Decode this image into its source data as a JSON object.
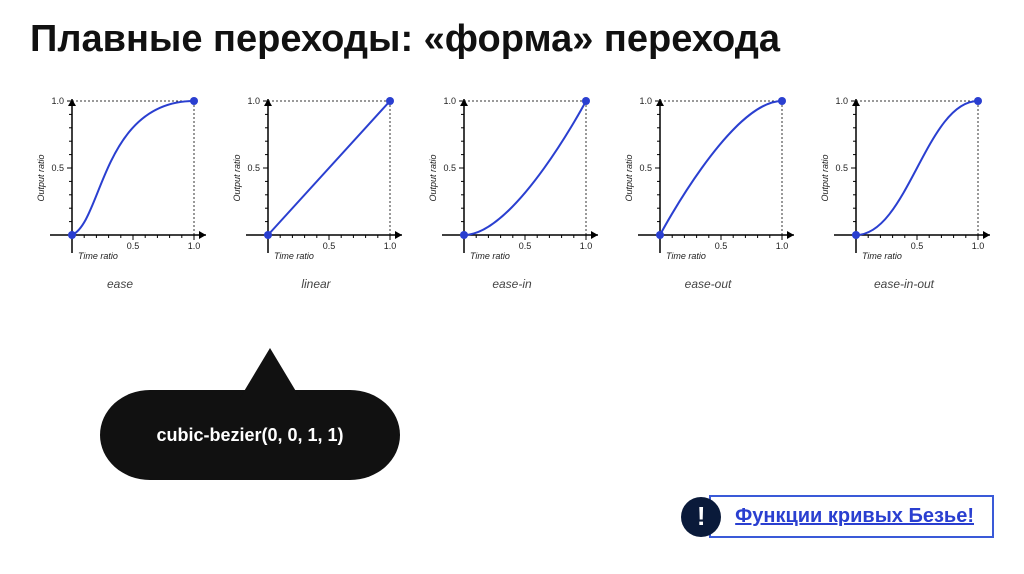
{
  "title": "Плавные переходы: «форма» перехода",
  "axis": {
    "xlabel": "Time ratio",
    "ylabel": "Output ratio",
    "xticks": [
      0.5,
      1.0
    ],
    "yticks": [
      0.5,
      1.0
    ],
    "xlim": [
      -0.25,
      1.25
    ],
    "ylim": [
      -0.25,
      1.25
    ],
    "axis_color": "#000000",
    "tick_fontsize": 9,
    "label_fontsize": 9,
    "label_font_style": "italic"
  },
  "curve_style": {
    "stroke": "#2a3fd0",
    "stroke_width": 2,
    "endpoint_fill": "#2a3fd0",
    "endpoint_radius": 4,
    "guide_stroke": "#333333",
    "guide_dash": "2,2",
    "background": "#ffffff"
  },
  "charts": [
    {
      "label": "ease",
      "bezier": [
        0.25,
        0.1,
        0.25,
        1.0
      ]
    },
    {
      "label": "linear",
      "bezier": [
        0.0,
        0.0,
        1.0,
        1.0
      ]
    },
    {
      "label": "ease-in",
      "bezier": [
        0.42,
        0.0,
        1.0,
        1.0
      ]
    },
    {
      "label": "ease-out",
      "bezier": [
        0.0,
        0.0,
        0.58,
        1.0
      ]
    },
    {
      "label": "ease-in-out",
      "bezier": [
        0.42,
        0.0,
        0.58,
        1.0
      ]
    }
  ],
  "bubble_text": "cubic-bezier(0, 0, 1, 1)",
  "bubble_points_to_chart_index": 1,
  "callout": {
    "bang": "!",
    "link_text": "Функции кривых Безье!",
    "link_color": "#2a3fd0",
    "border_color": "#3a5ad8",
    "bang_bg": "#0a1a3a"
  },
  "chart_svg": {
    "width": 180,
    "height": 180
  }
}
